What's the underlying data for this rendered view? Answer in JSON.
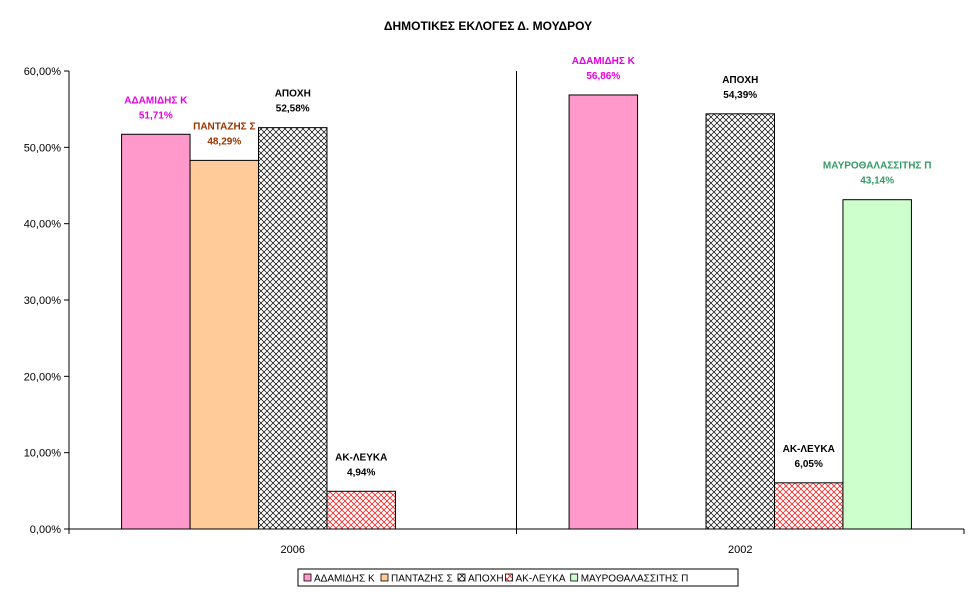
{
  "chart_data": {
    "type": "bar",
    "title": "ΔΗΜΟΤΙΚΕΣ ΕΚΛΟΓΕΣ Δ. ΜΟΥΔΡΟΥ",
    "xlabel": "",
    "ylabel": "",
    "ylim": [
      0,
      60
    ],
    "yticks": [
      "0,00%",
      "10,00%",
      "20,00%",
      "30,00%",
      "40,00%",
      "50,00%",
      "60,00%"
    ],
    "grid": false,
    "legend_position": "bottom",
    "categories": [
      "2006",
      "2002"
    ],
    "series": [
      {
        "name": "ΑΔΑΜΙΔΗΣ Κ",
        "values": [
          51.71,
          56.86
        ],
        "labels": [
          "51,71%",
          "56,86%"
        ],
        "color": "#ff99cc",
        "label_color": "#e600e6",
        "pattern": "solid"
      },
      {
        "name": "ΠΑΝΤΑΖΗΣ Σ",
        "values": [
          48.29,
          null
        ],
        "labels": [
          "48,29%",
          ""
        ],
        "color": "#ffcc99",
        "label_color": "#993300",
        "pattern": "solid"
      },
      {
        "name": "ΑΠΟΧΗ",
        "values": [
          52.58,
          54.39
        ],
        "labels": [
          "52,58%",
          "54,39%"
        ],
        "color": "#ffffff",
        "label_color": "#000000",
        "pattern": "crosshatch-black"
      },
      {
        "name": "ΑΚ-ΛΕΥΚΑ",
        "values": [
          4.94,
          6.05
        ],
        "labels": [
          "4,94%",
          "6,05%"
        ],
        "color": "#ffffff",
        "label_color": "#000000",
        "pattern": "crosshatch-red"
      },
      {
        "name": "ΜΑΥΡΟΘΑΛΑΣΣΙΤΗΣ Π",
        "values": [
          null,
          43.14
        ],
        "labels": [
          "",
          "43,14%"
        ],
        "color": "#ccffcc",
        "label_color": "#339966",
        "pattern": "solid"
      }
    ]
  }
}
